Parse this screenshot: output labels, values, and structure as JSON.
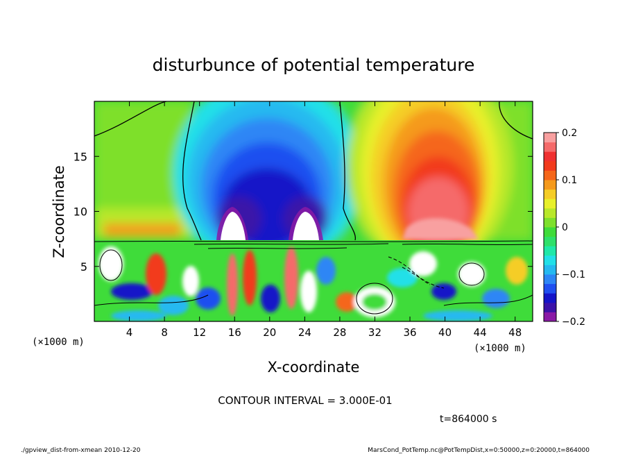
{
  "chart_data": {
    "type": "heatmap",
    "title": "disturbunce of potential temperature",
    "xlabel": "X-coordinate",
    "ylabel": "Z-coordinate",
    "x_unit_left": "(×1000 m)",
    "x_unit_right": "(×1000 m)",
    "xlim": [
      0,
      50
    ],
    "ylim": [
      0,
      20
    ],
    "xticks": [
      4,
      8,
      12,
      16,
      20,
      24,
      28,
      32,
      36,
      40,
      44,
      48
    ],
    "yticks": [
      5,
      10,
      15
    ],
    "colorbar": {
      "range": [
        -0.2,
        0.2
      ],
      "ticks": [
        {
          "value": 0.2,
          "label": "0.2"
        },
        {
          "value": 0.1,
          "label": "0.1"
        },
        {
          "value": 0.0,
          "label": "0"
        },
        {
          "value": -0.1,
          "label": "−0.1"
        },
        {
          "value": -0.2,
          "label": "−0.2"
        }
      ],
      "colors": [
        "#8a1aa6",
        "#3b12a8",
        "#1414c8",
        "#1f4ff0",
        "#2d86f5",
        "#25b9f0",
        "#21e0e8",
        "#1fe8a8",
        "#2ee06a",
        "#3fdc3a",
        "#7ee02c",
        "#b8e82a",
        "#e8f02a",
        "#f5cd26",
        "#f59a1c",
        "#f5661a",
        "#f23a1c",
        "#f03030",
        "#f56a6a",
        "#f8a0a0"
      ]
    },
    "contour_interval": "CONTOUR INTERVAL = 3.000E-01",
    "features": [
      {
        "type": "cold_lobe",
        "x": 15.5,
        "z": 10.5,
        "peak": -0.2
      },
      {
        "type": "cold_lobe",
        "x": 22.5,
        "z": 10.5,
        "peak": -0.2
      },
      {
        "type": "warm_plume",
        "x": 40,
        "z": 11,
        "peak": 0.2
      }
    ]
  },
  "time_label": "t=864000 s",
  "footer": {
    "left": "./gpview_dist-from-xmean  2010-12-20",
    "right": "MarsCond_PotTemp.nc@PotTempDist,x=0:50000,z=0:20000,t=864000"
  }
}
